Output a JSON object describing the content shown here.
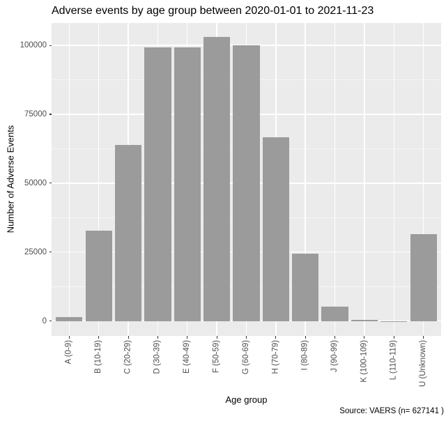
{
  "title": "Adverse events by age group between 2020-01-01 to 2021-11-23",
  "caption": "Source: VAERS (n= 627141 )",
  "chart_data": {
    "type": "bar",
    "title": "Adverse events by age group between 2020-01-01 to 2021-11-23",
    "xlabel": "Age group",
    "ylabel": "Number of Adverse Events",
    "categories": [
      "A (0-9)",
      "B (10-19)",
      "C (20-29)",
      "D (30-39)",
      "E (40-49)",
      "F (50-59)",
      "G (60-69)",
      "H (70-79)",
      "I (80-89)",
      "J (90-99)",
      "K (100-109)",
      "L (110-119)",
      "U (Unknown)"
    ],
    "values": [
      1400,
      32800,
      63800,
      99300,
      99250,
      103000,
      99900,
      66700,
      24500,
      5300,
      400,
      30,
      31500
    ],
    "yticks": [
      0,
      25000,
      50000,
      75000,
      100000
    ],
    "ytick_labels": [
      "0",
      "25000",
      "50000",
      "75000",
      "100000"
    ],
    "minor_yticks": [
      12500,
      37500,
      62500,
      87500
    ],
    "ylim": [
      -5400,
      108100
    ],
    "grid": true,
    "legend_position": "none",
    "colors": {
      "bar_fill": "#979797",
      "panel_bg": "#ebebeb",
      "grid_major": "#ffffff",
      "grid_minor": "#ffffff",
      "axis_text": "#4d4d4d",
      "tick_mark": "#333333",
      "title_text": "#000000"
    }
  }
}
